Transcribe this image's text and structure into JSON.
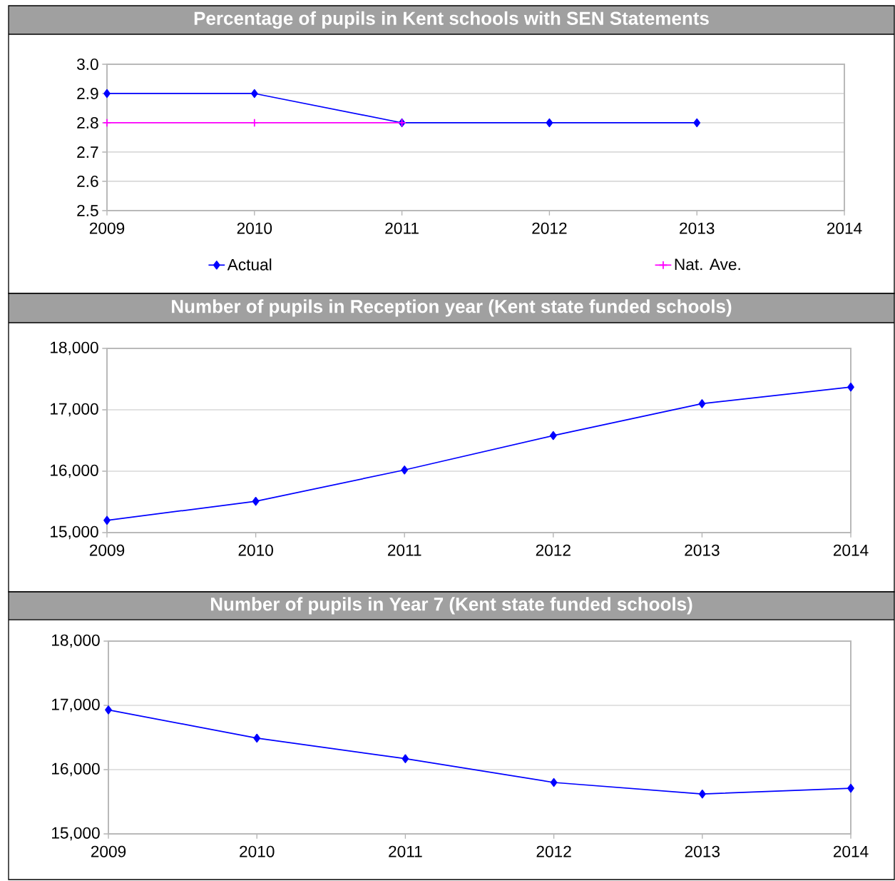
{
  "chart_data": [
    {
      "type": "line",
      "title": "Percentage of pupils in Kent schools with SEN Statements",
      "series": [
        {
          "name": "Actual",
          "color": "#0000ff",
          "marker": "diamond",
          "x": [
            2009,
            2010,
            2011,
            2012,
            2013
          ],
          "values": [
            2.9,
            2.9,
            2.8,
            2.8,
            2.8
          ]
        },
        {
          "name": "Nat. Ave.",
          "color": "#ff00ff",
          "marker": "cross",
          "x": [
            2009,
            2010,
            2011
          ],
          "values": [
            2.8,
            2.8,
            2.8
          ]
        }
      ],
      "xlim": [
        2009,
        2014
      ],
      "xticks": [
        2009,
        2010,
        2011,
        2012,
        2013,
        2014
      ],
      "ylim": [
        2.5,
        3.0
      ],
      "yticks": [
        {
          "value": 2.5,
          "label": "2.5"
        },
        {
          "value": 2.6,
          "label": "2.6"
        },
        {
          "value": 2.7,
          "label": "2.7"
        },
        {
          "value": 2.8,
          "label": "2.8"
        },
        {
          "value": 2.9,
          "label": "2.9"
        },
        {
          "value": 3.0,
          "label": "3.0"
        }
      ],
      "grid": "y",
      "legend": "bottom"
    },
    {
      "type": "line",
      "title": "Number of pupils in Reception year (Kent state funded schools)",
      "x": [
        2009,
        2010,
        2011,
        2012,
        2013,
        2014
      ],
      "series": [
        {
          "color": "#0000ff",
          "marker": "diamond",
          "values": [
            15200,
            15510,
            16020,
            16580,
            17100,
            17370
          ]
        }
      ],
      "xlim": [
        2009,
        2014
      ],
      "xticks": [
        2009,
        2010,
        2011,
        2012,
        2013,
        2014
      ],
      "ylim": [
        15000,
        18000
      ],
      "yticks": [
        {
          "value": 15000,
          "label": "15,000"
        },
        {
          "value": 16000,
          "label": "16,000"
        },
        {
          "value": 17000,
          "label": "17,000"
        },
        {
          "value": 18000,
          "label": "18,000"
        }
      ],
      "grid": "y"
    },
    {
      "type": "line",
      "title": "Number of pupils in Year 7 (Kent state funded schools)",
      "x": [
        2009,
        2010,
        2011,
        2012,
        2013,
        2014
      ],
      "series": [
        {
          "color": "#0000ff",
          "marker": "diamond",
          "values": [
            16930,
            16490,
            16170,
            15800,
            15620,
            15710
          ]
        }
      ],
      "xlim": [
        2009,
        2014
      ],
      "xticks": [
        2009,
        2010,
        2011,
        2012,
        2013,
        2014
      ],
      "ylim": [
        15000,
        18000
      ],
      "yticks": [
        {
          "value": 15000,
          "label": "15,000"
        },
        {
          "value": 16000,
          "label": "16,000"
        },
        {
          "value": 17000,
          "label": "17,000"
        },
        {
          "value": 18000,
          "label": "18,000"
        }
      ],
      "grid": "y"
    }
  ]
}
